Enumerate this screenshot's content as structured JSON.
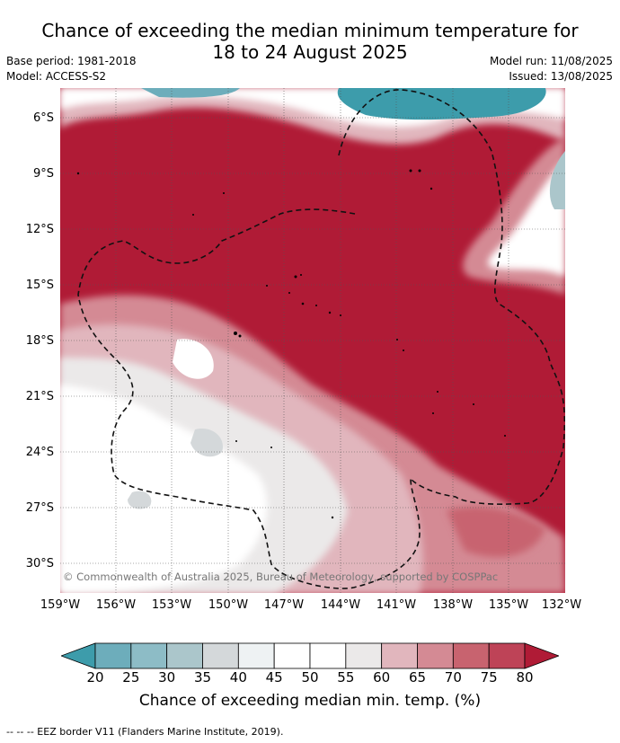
{
  "title_line1": "Chance of exceeding the median minimum temperature for",
  "title_line2": "18 to 24 August 2025",
  "base_period": "Base period: 1981-2018",
  "model": "Model: ACCESS-S2",
  "model_run": "Model run: 11/08/2025",
  "issued": "Issued: 13/08/2025",
  "copyright": "© Commonwealth of Australia 2025, Bureau of Meteorology, supported by COSPPac",
  "lat_labels": [
    "6°S",
    "9°S",
    "12°S",
    "15°S",
    "18°S",
    "21°S",
    "24°S",
    "27°S",
    "30°S"
  ],
  "lon_labels": [
    "159°W",
    "156°W",
    "153°W",
    "150°W",
    "147°W",
    "144°W",
    "141°W",
    "138°W",
    "135°W",
    "132°W"
  ],
  "colorbar": {
    "title": "Chance of exceeding median min. temp. (%)",
    "ticks": [
      "20",
      "25",
      "30",
      "35",
      "40",
      "45",
      "50",
      "55",
      "60",
      "65",
      "70",
      "75",
      "80"
    ],
    "colors": [
      "#3d9cab",
      "#6dadbb",
      "#8dbcc6",
      "#abc6cb",
      "#d4d8da",
      "#eef2f3",
      "#ffffff",
      "#ffffff",
      "#ebe9e9",
      "#e1b6bd",
      "#d48a94",
      "#c8636f",
      "#be4357",
      "#b01b36"
    ]
  },
  "footnote": "--  --  -- EEZ border V11 (Flanders Marine Institute, 2019)."
}
